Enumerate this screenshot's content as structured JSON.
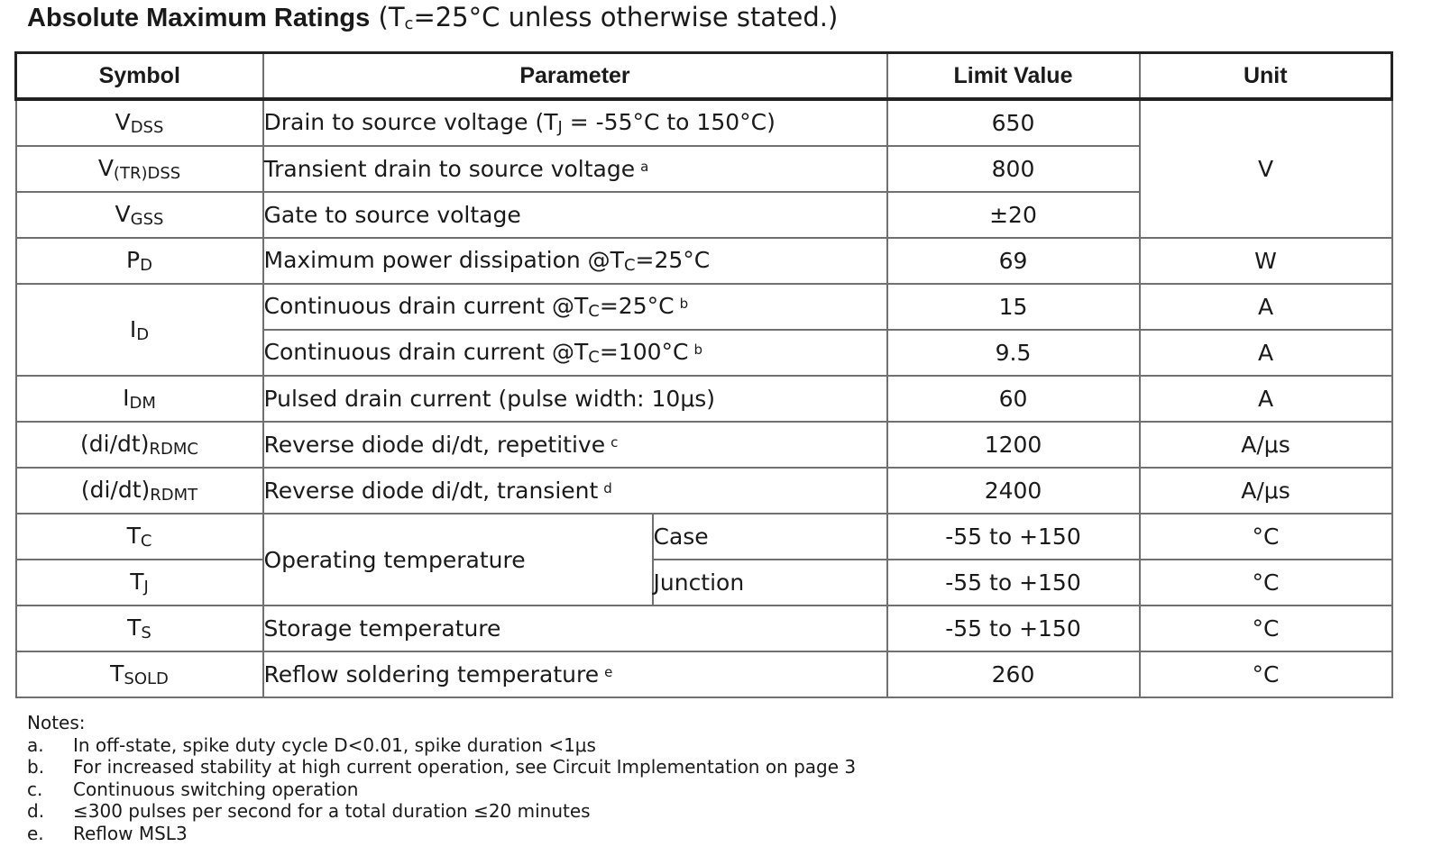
{
  "title": {
    "bold": "Absolute Maximum Ratings",
    "condition": "(Tc=25°C unless otherwise stated.)",
    "condition_pre": " (T",
    "condition_sub": "c",
    "condition_post": "=25°C unless otherwise stated.)"
  },
  "headers": {
    "symbol": "Symbol",
    "parameter": "Parameter",
    "limit": "Limit Value",
    "unit": "Unit"
  },
  "rows": [
    {
      "sym": "V",
      "sym_sub": "DSS",
      "param": "Drain to source voltage (TJ = -55°C to 150°C)",
      "value": "650"
    },
    {
      "sym": "V",
      "sym_sub": "(TR)DSS",
      "param": "Transient drain to source voltage",
      "note": "a",
      "value": "800"
    },
    {
      "sym": "V",
      "sym_sub": "GSS",
      "param": "Gate to source voltage",
      "value": "±20"
    },
    {
      "sym": "P",
      "sym_sub": "D",
      "param": "Maximum power dissipation @Tc=25°C",
      "value": "69",
      "unit": "W"
    },
    {
      "sym": "I",
      "sym_sub": "D",
      "param": "Continuous drain current @Tc=25°C",
      "note": "b",
      "value": "15",
      "unit": "A"
    },
    {
      "param": "Continuous drain current @Tc=100°C",
      "note": "b",
      "value": "9.5",
      "unit": "A"
    },
    {
      "sym": "I",
      "sym_sub": "DM",
      "param": "Pulsed drain current (pulse width: 10μs)",
      "value": "60",
      "unit": "A"
    },
    {
      "sym": "(di/dt)",
      "sym_sub": "RDMC",
      "param": "Reverse diode di/dt, repetitive",
      "note": "c",
      "value": "1200",
      "unit": "A/μs"
    },
    {
      "sym": "(di/dt)",
      "sym_sub": "RDMT",
      "param": "Reverse diode di/dt, transient",
      "note": "d",
      "value": "2400",
      "unit": "A/μs"
    },
    {
      "sym": "T",
      "sym_sub": "C",
      "param": "Operating temperature",
      "sub": "Case",
      "value": "-55 to +150",
      "unit": "°C"
    },
    {
      "sym": "T",
      "sym_sub": "J",
      "sub": "Junction",
      "value": "-55 to +150",
      "unit": "°C"
    },
    {
      "sym": "T",
      "sym_sub": "S",
      "param": "Storage temperature",
      "value": "-55 to +150",
      "unit": "°C"
    },
    {
      "sym": "T",
      "sym_sub": "SOLD",
      "param": "Reflow soldering temperature",
      "note": "e",
      "value": "260",
      "unit": "°C"
    }
  ],
  "unit_v": "V",
  "param_row0": {
    "pre": "Drain to source voltage (T",
    "sub": "J",
    "post": " = -55°C to 150°C)"
  },
  "param_row3": {
    "pre": "Maximum power dissipation @T",
    "sub": "C",
    "post": "=25°C"
  },
  "param_row4": {
    "pre": "Continuous drain current @T",
    "sub": "C",
    "post": "=25°C"
  },
  "param_row5": {
    "pre": "Continuous drain current @T",
    "sub": "C",
    "post": "=100°C"
  },
  "notes": {
    "heading": "Notes:",
    "items": [
      {
        "letter": "a.",
        "text": "In off-state, spike duty cycle D<0.01, spike duration <1μs"
      },
      {
        "letter": "b.",
        "text": "For increased stability at high current operation, see Circuit Implementation on page 3"
      },
      {
        "letter": "c.",
        "text": "Continuous switching operation"
      },
      {
        "letter": "d.",
        "text": "≤300 pulses per second for a total duration ≤20 minutes"
      },
      {
        "letter": "e.",
        "text": "Reflow MSL3"
      }
    ]
  }
}
